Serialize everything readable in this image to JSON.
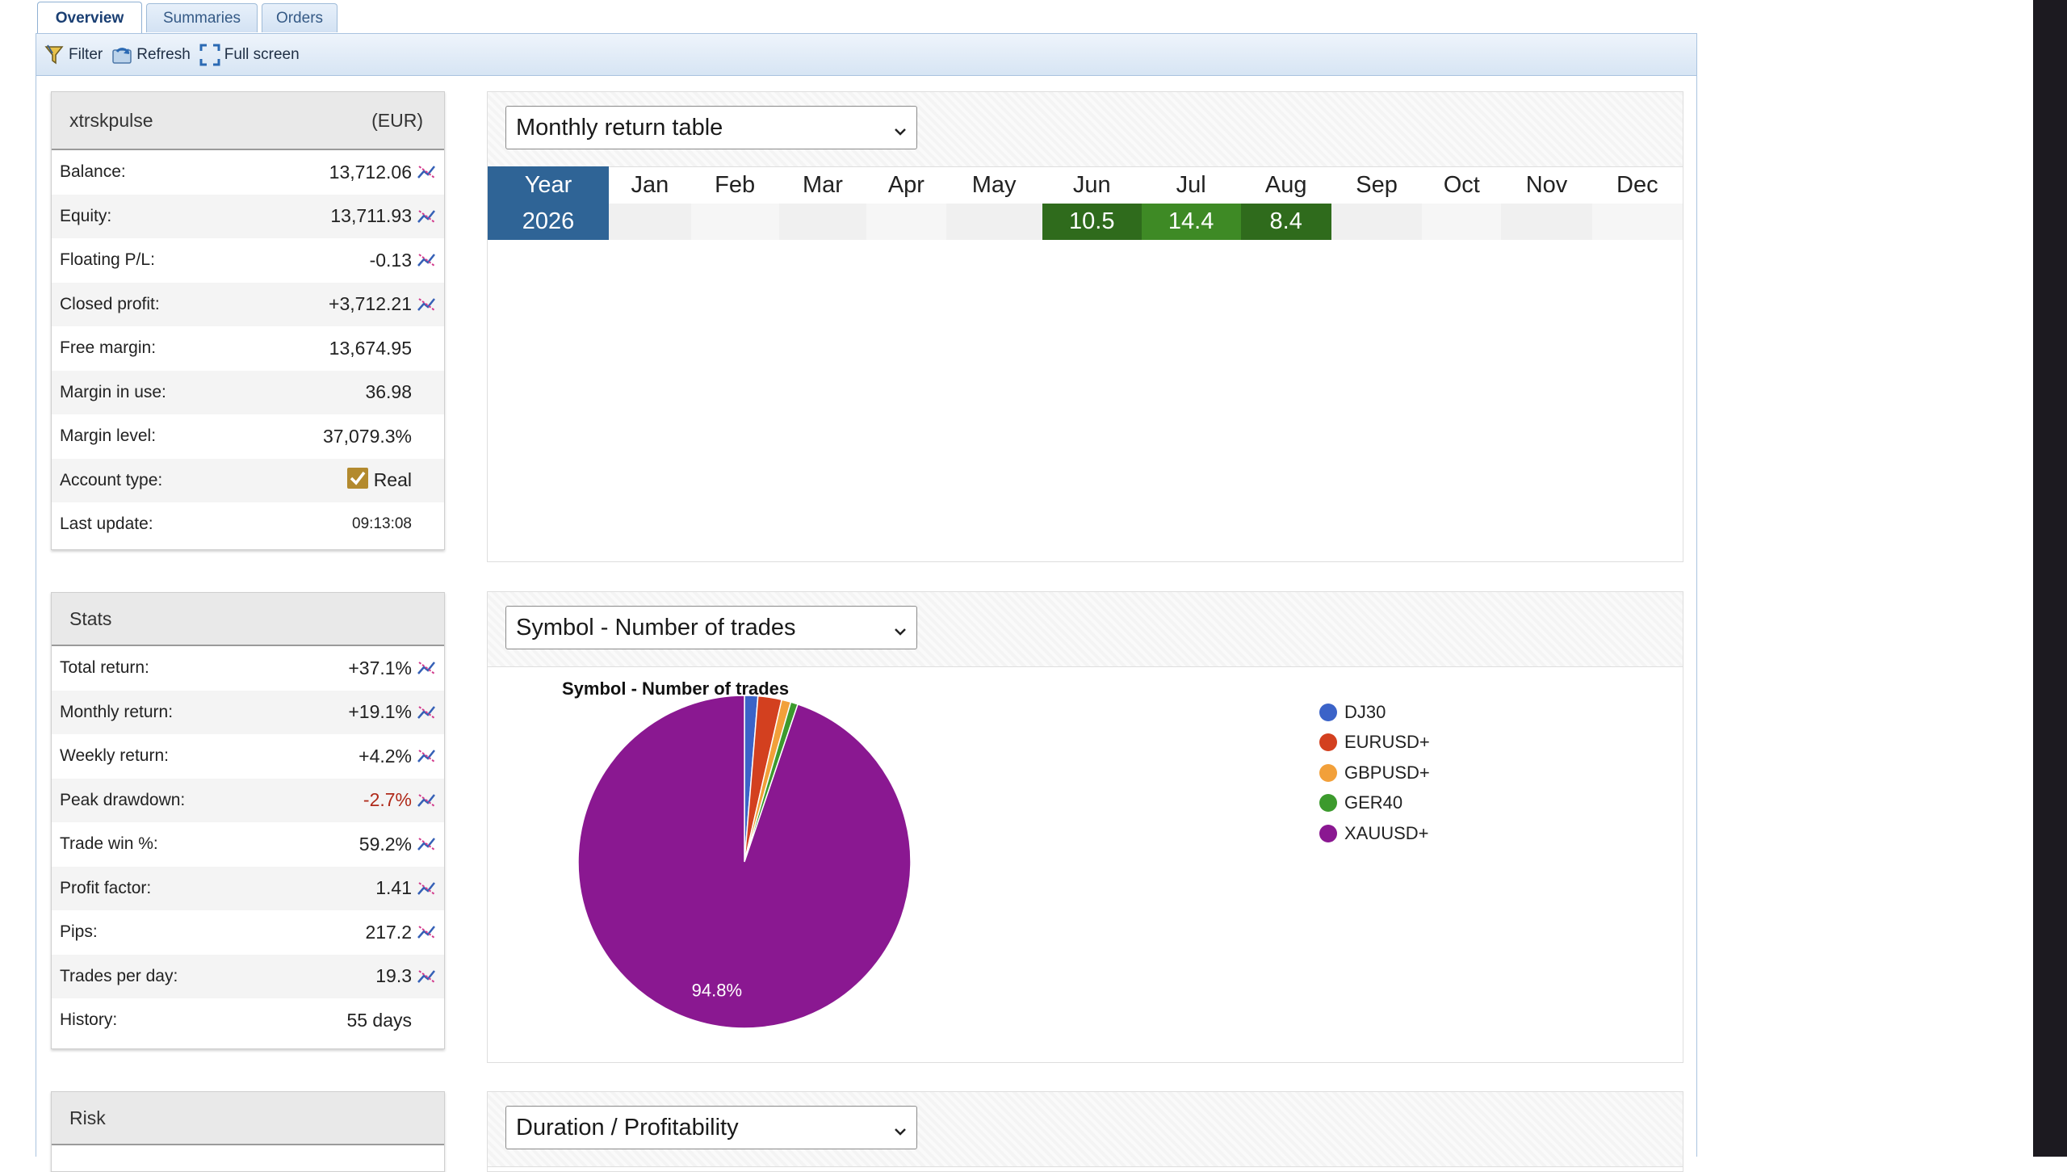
{
  "tabs": [
    {
      "label": "Overview",
      "active": true
    },
    {
      "label": "Summaries",
      "active": false
    },
    {
      "label": "Orders",
      "active": false
    }
  ],
  "toolbar": {
    "filter": "Filter",
    "refresh": "Refresh",
    "fullscreen": "Full screen"
  },
  "account": {
    "name": "xtrskpulse",
    "currency": "(EUR)",
    "rows": [
      {
        "label": "Balance:",
        "value": "13,712.06",
        "chart": true
      },
      {
        "label": "Equity:",
        "value": "13,711.93",
        "chart": true
      },
      {
        "label": "Floating P/L:",
        "value": "-0.13",
        "chart": true
      },
      {
        "label": "Closed profit:",
        "value": "+3,712.21",
        "chart": true
      },
      {
        "label": "Free margin:",
        "value": "13,674.95",
        "chart": false
      },
      {
        "label": "Margin in use:",
        "value": "36.98",
        "chart": false
      },
      {
        "label": "Margin level:",
        "value": "37,079.3%",
        "chart": false
      },
      {
        "label": "Account type:",
        "value": "Real",
        "chart": false
      },
      {
        "label": "Last update:",
        "value": "09:13:08",
        "chart": false
      }
    ]
  },
  "stats": {
    "title": "Stats",
    "rows": [
      {
        "label": "Total return:",
        "value": "+37.1%",
        "chart": true
      },
      {
        "label": "Monthly return:",
        "value": "+19.1%",
        "chart": true
      },
      {
        "label": "Weekly return:",
        "value": "+4.2%",
        "chart": true
      },
      {
        "label": "Peak drawdown:",
        "value": "-2.7%",
        "chart": true,
        "negative": true
      },
      {
        "label": "Trade win %:",
        "value": "59.2%",
        "chart": true
      },
      {
        "label": "Profit factor:",
        "value": "1.41",
        "chart": true
      },
      {
        "label": "Pips:",
        "value": "217.2",
        "chart": true
      },
      {
        "label": "Trades per day:",
        "value": "19.3",
        "chart": true
      },
      {
        "label": "History:",
        "value": "55 days",
        "chart": false
      }
    ]
  },
  "risk": {
    "title": "Risk"
  },
  "monthly": {
    "select": "Monthly return table",
    "headers": [
      "Year",
      "Jan",
      "Feb",
      "Mar",
      "Apr",
      "May",
      "Jun",
      "Jul",
      "Aug",
      "Sep",
      "Oct",
      "Nov",
      "Dec"
    ],
    "rows": [
      {
        "year": "2026",
        "values": [
          "",
          "",
          "",
          "",
          "",
          "10.5",
          "14.4",
          "8.4",
          "",
          "",
          "",
          ""
        ]
      }
    ]
  },
  "symbols": {
    "select": "Symbol - Number of trades",
    "chart_data": {
      "type": "pie",
      "title": "Symbol - Number of trades",
      "categories": [
        "DJ30",
        "EURUSD+",
        "GBPUSD+",
        "GER40",
        "XAUUSD+"
      ],
      "values": [
        1.3,
        2.3,
        0.9,
        0.7,
        94.8
      ],
      "colors": [
        "#3b63c8",
        "#d3401f",
        "#f2a03a",
        "#3c9a2d",
        "#8a1891"
      ],
      "labels": [
        "",
        "",
        "",
        "",
        "94.8%"
      ],
      "legend": "right"
    }
  },
  "duration": {
    "select": "Duration / Profitability"
  },
  "colors": {
    "accent": "#2f6496",
    "positive_dark": "#2f6b1c",
    "positive": "#3e8a25",
    "negative": "#b02a1a"
  }
}
